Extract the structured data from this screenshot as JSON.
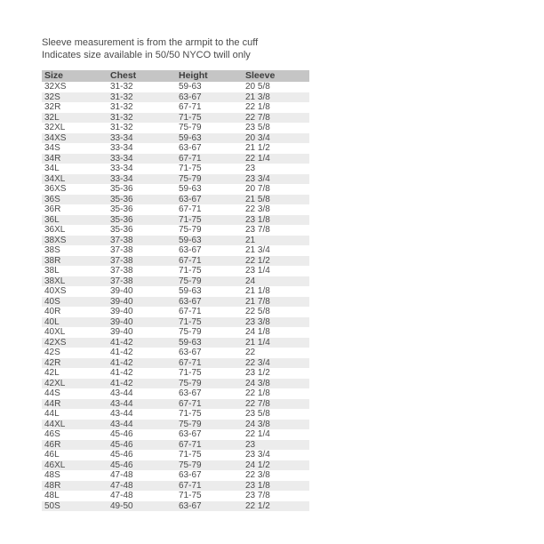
{
  "intro": {
    "line1": "Sleeve measurement is from the armpit to the cuff",
    "line2": "Indicates size available in 50/50 NYCO twill only"
  },
  "table": {
    "columns": [
      "Size",
      "Chest",
      "Height",
      "Sleeve"
    ],
    "rows": [
      [
        "32XS",
        "31-32",
        "59-63",
        "20 5/8"
      ],
      [
        "32S",
        "31-32",
        "63-67",
        "21 3/8"
      ],
      [
        "32R",
        "31-32",
        "67-71",
        "22 1/8"
      ],
      [
        "32L",
        "31-32",
        "71-75",
        "22 7/8"
      ],
      [
        "32XL",
        "31-32",
        "75-79",
        "23 5/8"
      ],
      [
        "34XS",
        "33-34",
        "59-63",
        "20 3/4"
      ],
      [
        "34S",
        "33-34",
        "63-67",
        "21 1/2"
      ],
      [
        "34R",
        "33-34",
        "67-71",
        "22 1/4"
      ],
      [
        "34L",
        "33-34",
        "71-75",
        "23"
      ],
      [
        "34XL",
        "33-34",
        "75-79",
        "23 3/4"
      ],
      [
        "36XS",
        "35-36",
        "59-63",
        "20 7/8"
      ],
      [
        "36S",
        "35-36",
        "63-67",
        "21 5/8"
      ],
      [
        "36R",
        "35-36",
        "67-71",
        "22 3/8"
      ],
      [
        "36L",
        "35-36",
        "71-75",
        "23 1/8"
      ],
      [
        "36XL",
        "35-36",
        "75-79",
        "23 7/8"
      ],
      [
        "38XS",
        "37-38",
        "59-63",
        "21"
      ],
      [
        "38S",
        "37-38",
        "63-67",
        "21 3/4"
      ],
      [
        "38R",
        "37-38",
        "67-71",
        "22 1/2"
      ],
      [
        "38L",
        "37-38",
        "71-75",
        "23 1/4"
      ],
      [
        "38XL",
        "37-38",
        "75-79",
        "24"
      ],
      [
        "40XS",
        "39-40",
        "59-63",
        "21 1/8"
      ],
      [
        "40S",
        "39-40",
        "63-67",
        "21 7/8"
      ],
      [
        "40R",
        "39-40",
        "67-71",
        "22 5/8"
      ],
      [
        "40L",
        "39-40",
        "71-75",
        "23 3/8"
      ],
      [
        "40XL",
        "39-40",
        "75-79",
        "24 1/8"
      ],
      [
        "42XS",
        "41-42",
        "59-63",
        "21 1/4"
      ],
      [
        "42S",
        "41-42",
        "63-67",
        "22"
      ],
      [
        "42R",
        "41-42",
        "67-71",
        "22 3/4"
      ],
      [
        "42L",
        "41-42",
        "71-75",
        "23 1/2"
      ],
      [
        "42XL",
        "41-42",
        "75-79",
        "24 3/8"
      ],
      [
        "44S",
        "43-44",
        "63-67",
        "22 1/8"
      ],
      [
        "44R",
        "43-44",
        "67-71",
        "22 7/8"
      ],
      [
        "44L",
        "43-44",
        "71-75",
        "23 5/8"
      ],
      [
        "44XL",
        "43-44",
        "75-79",
        "24 3/8"
      ],
      [
        "46S",
        "45-46",
        "63-67",
        "22 1/4"
      ],
      [
        "46R",
        "45-46",
        "67-71",
        "23"
      ],
      [
        "46L",
        "45-46",
        "71-75",
        "23 3/4"
      ],
      [
        "46XL",
        "45-46",
        "75-79",
        "24 1/2"
      ],
      [
        "48S",
        "47-48",
        "63-67",
        "22 3/8"
      ],
      [
        "48R",
        "47-48",
        "67-71",
        "23 1/8"
      ],
      [
        "48L",
        "47-48",
        "71-75",
        "23 7/8"
      ],
      [
        "50S",
        "49-50",
        "63-67",
        "22 1/2"
      ]
    ]
  },
  "colors": {
    "header_bg": "#c5c5c5",
    "stripe_bg": "#ececec",
    "text": "#4a4a4a"
  }
}
